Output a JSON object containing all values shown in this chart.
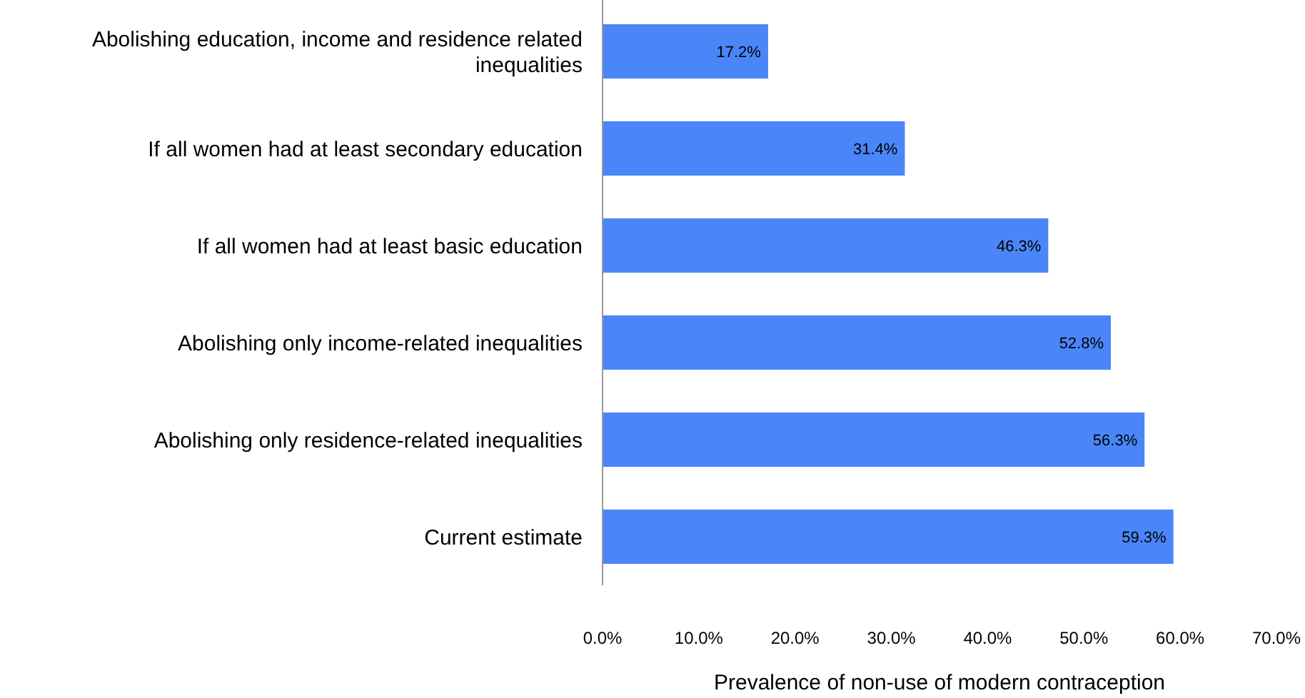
{
  "chart_data": {
    "type": "bar",
    "orientation": "horizontal",
    "xlabel": "Prevalence of non-use of modern contraception",
    "categories": [
      "Abolishing education, income and residence related inequalities",
      "If all women had at least secondary education",
      "If all women had at least basic education",
      "Abolishing only income-related inequalities",
      "Abolishing only residence-related inequalities",
      "Current estimate"
    ],
    "values": [
      17.2,
      31.4,
      46.3,
      52.8,
      56.3,
      59.3
    ],
    "value_labels": [
      "17.2%",
      "31.4%",
      "46.3%",
      "52.8%",
      "56.3%",
      "59.3%"
    ],
    "color": "#4a86f8",
    "xlim": [
      0,
      70
    ],
    "xticks": [
      {
        "value": 0,
        "label": "0.0%"
      },
      {
        "value": 10,
        "label": "10.0%"
      },
      {
        "value": 20,
        "label": "20.0%"
      },
      {
        "value": 30,
        "label": "30.0%"
      },
      {
        "value": 40,
        "label": "40.0%"
      },
      {
        "value": 50,
        "label": "50.0%"
      },
      {
        "value": 60,
        "label": "60.0%"
      },
      {
        "value": 70,
        "label": "70.0%"
      }
    ],
    "grid": false
  }
}
